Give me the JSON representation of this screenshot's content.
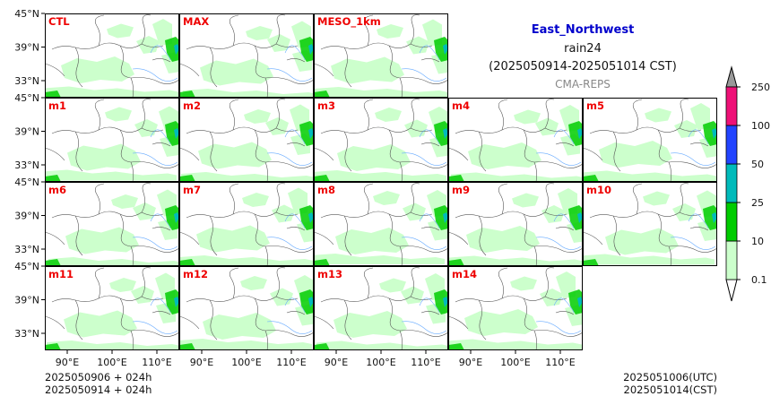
{
  "header": {
    "region": "East_Northwest",
    "variable": "rain24",
    "period": "(2025050914-2025051014 CST)",
    "source": "CMA-REPS"
  },
  "panels": [
    [
      "CTL",
      "MAX",
      "MESO_1km"
    ],
    [
      "m1",
      "m2",
      "m3",
      "m4",
      "m5"
    ],
    [
      "m6",
      "m7",
      "m8",
      "m9",
      "m10"
    ],
    [
      "m11",
      "m12",
      "m13",
      "m14"
    ]
  ],
  "axes": {
    "lat_ticks": [
      "45°N",
      "39°N",
      "33°N"
    ],
    "lon_ticks": [
      "90°E",
      "100°E",
      "110°E"
    ]
  },
  "colorbar": {
    "levels": [
      "0.1",
      "10",
      "25",
      "50",
      "100",
      "250"
    ],
    "colors": [
      "#ccffcc",
      "#00cc00",
      "#00bbbb",
      "#2244ff",
      "#ee1177"
    ],
    "over_color": "#999999",
    "under_color": "#ffffff"
  },
  "footer": {
    "init_line1": "2025050906  +  024h",
    "init_line2": "2025050914  +  024h",
    "valid_utc": "2025051006(UTC)",
    "valid_cst": "2025051014(CST)"
  },
  "colors": {
    "title_blue": "#0000cc",
    "label_red": "#ee0000",
    "subtitle_gray": "#888888"
  }
}
